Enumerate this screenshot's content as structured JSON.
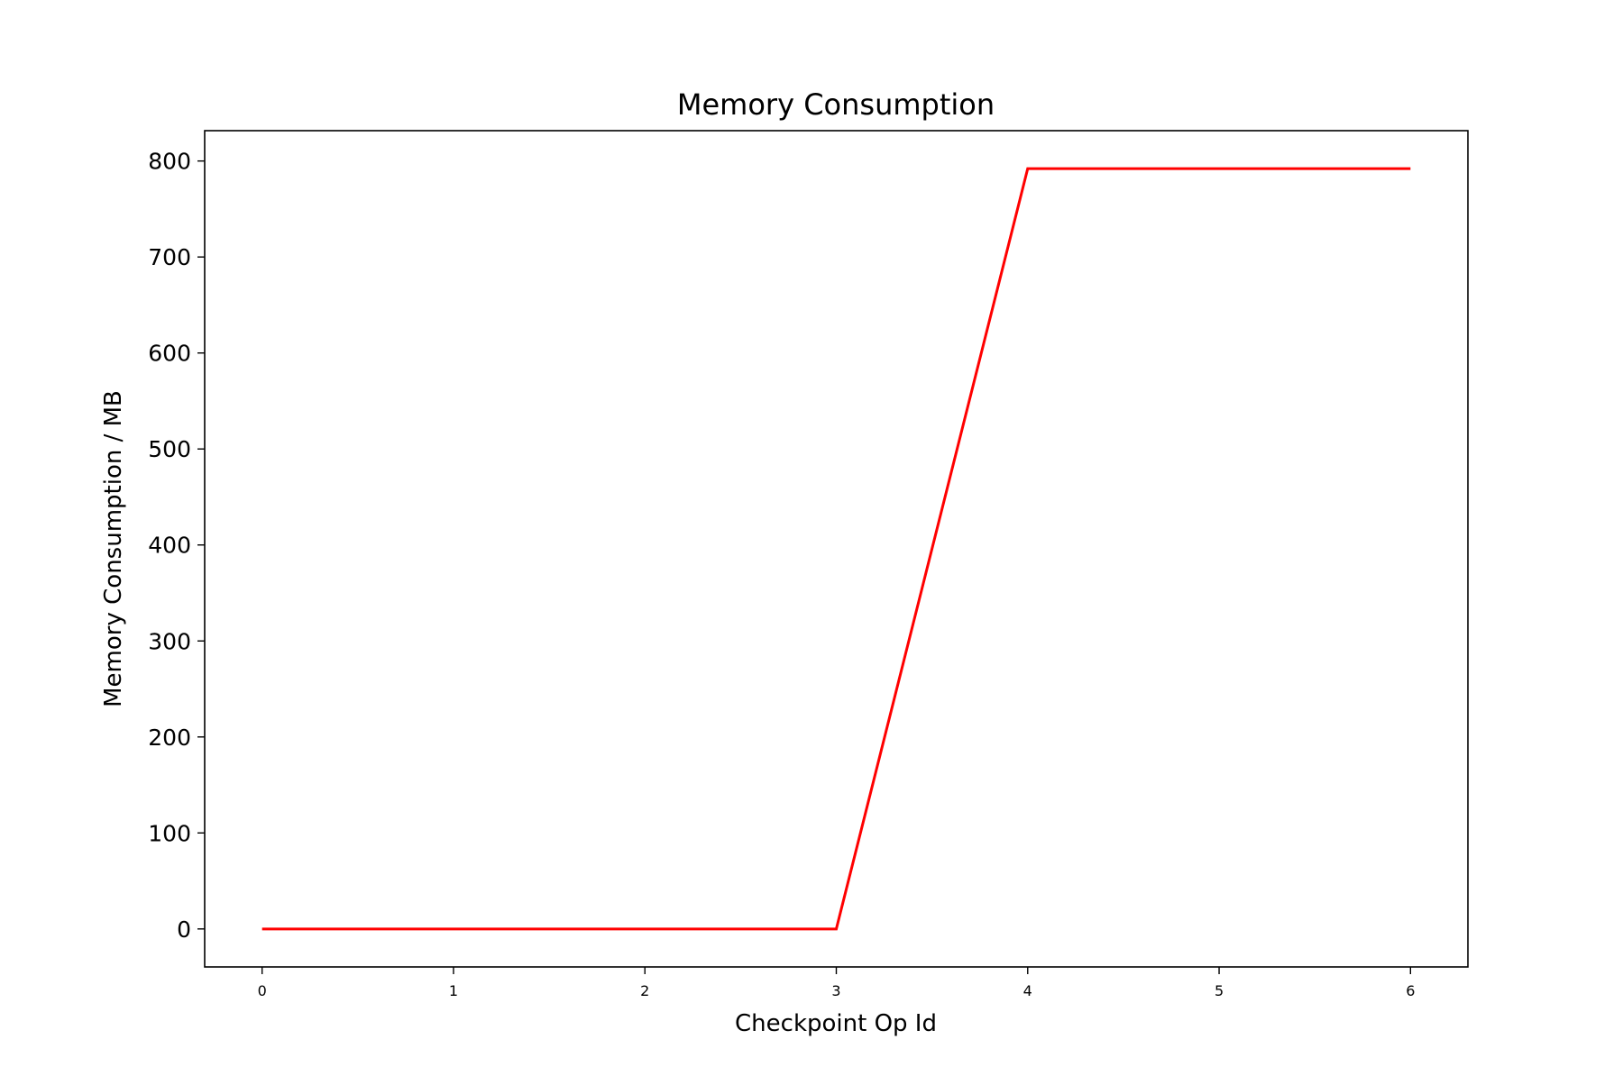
{
  "chart_data": {
    "type": "line",
    "title": "Memory Consumption",
    "xlabel": "Checkpoint Op Id",
    "ylabel": "Memory Consumption / MB",
    "x": [
      0,
      1,
      2,
      3,
      4,
      5,
      6
    ],
    "series": [
      {
        "values": [
          0,
          0,
          0,
          0,
          792,
          792,
          792
        ],
        "color": "#ff0000"
      }
    ],
    "xlim": [
      -0.3,
      6.3
    ],
    "ylim": [
      -39.6,
      831.6
    ],
    "xticks": [
      0,
      1,
      2,
      3,
      4,
      5,
      6
    ],
    "xtick_labels": [
      "0",
      "1",
      "2",
      "3",
      "4",
      "5",
      "6"
    ],
    "yticks": [
      0,
      100,
      200,
      300,
      400,
      500,
      600,
      700,
      800
    ],
    "ytick_labels": [
      "0",
      "100",
      "200",
      "300",
      "400",
      "500",
      "600",
      "700",
      "800"
    ],
    "grid": false,
    "legend": "none"
  }
}
